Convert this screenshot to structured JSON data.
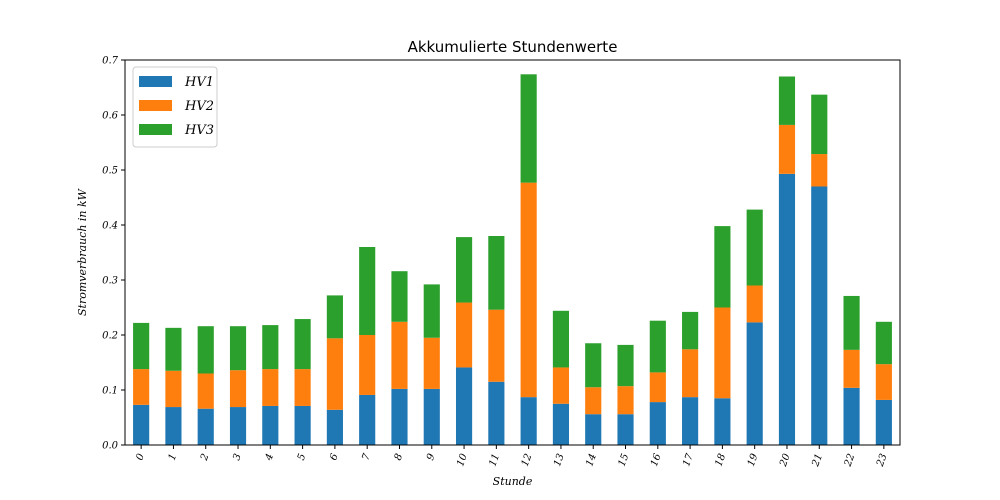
{
  "chart_data": {
    "type": "bar",
    "stacked": true,
    "title": "Akkumulierte Stundenwerte",
    "xlabel": "Stunde",
    "ylabel": "Stromverbrauch in kW",
    "ylim": [
      0,
      0.7
    ],
    "yticks": [
      "0.0",
      "0.1",
      "0.2",
      "0.3",
      "0.4",
      "0.5",
      "0.6",
      "0.7"
    ],
    "categories": [
      "0",
      "1",
      "2",
      "3",
      "4",
      "5",
      "6",
      "7",
      "8",
      "9",
      "10",
      "11",
      "12",
      "13",
      "14",
      "15",
      "16",
      "17",
      "18",
      "19",
      "20",
      "21",
      "22",
      "23"
    ],
    "legend_position": "top-left",
    "grid": false,
    "series": [
      {
        "name": "HV1",
        "color": "#1f77b4",
        "values": [
          0.073,
          0.069,
          0.066,
          0.069,
          0.071,
          0.071,
          0.064,
          0.091,
          0.102,
          0.102,
          0.141,
          0.115,
          0.087,
          0.075,
          0.056,
          0.056,
          0.078,
          0.087,
          0.085,
          0.223,
          0.493,
          0.47,
          0.104,
          0.082
        ]
      },
      {
        "name": "HV2",
        "color": "#ff7f0e",
        "values": [
          0.065,
          0.066,
          0.064,
          0.067,
          0.067,
          0.067,
          0.13,
          0.109,
          0.122,
          0.093,
          0.118,
          0.131,
          0.39,
          0.066,
          0.049,
          0.051,
          0.054,
          0.087,
          0.165,
          0.067,
          0.089,
          0.059,
          0.069,
          0.065
        ]
      },
      {
        "name": "HV3",
        "color": "#2ca02c",
        "values": [
          0.084,
          0.078,
          0.086,
          0.08,
          0.08,
          0.091,
          0.078,
          0.16,
          0.092,
          0.097,
          0.119,
          0.134,
          0.197,
          0.103,
          0.08,
          0.075,
          0.094,
          0.068,
          0.148,
          0.138,
          0.088,
          0.108,
          0.098,
          0.077
        ]
      }
    ]
  }
}
